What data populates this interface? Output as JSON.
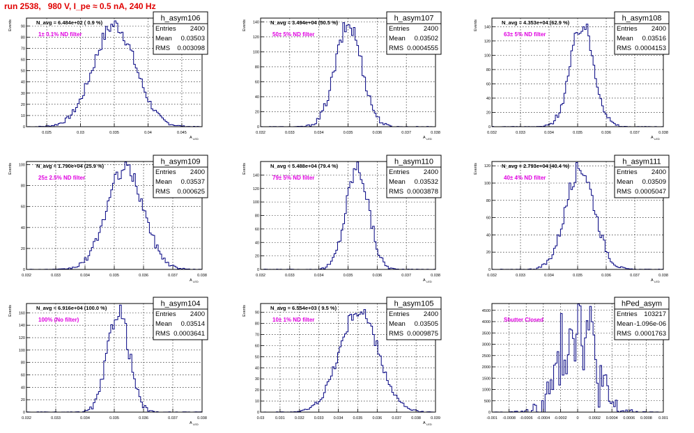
{
  "title": "run 2538,   980 V, I_pe ≈ 0.5 nA, 240 Hz",
  "colors": {
    "hist": "#000080",
    "label": "#e000e0",
    "title": "#e00000"
  },
  "chart_data": [
    {
      "type": "histogram",
      "name": "h_asym106",
      "avg": "N_avg = 6.484e+02 ( 0.9 %)",
      "label": "1± 0.1% ND filter",
      "stats": {
        "entries": "2400",
        "mean": "0.03503",
        "rms": "0.003098"
      },
      "mean": 0.03503,
      "rms": 0.003098,
      "xlim": [
        0.022,
        0.048
      ],
      "ylim": [
        0,
        97
      ],
      "peak": 91,
      "xticks": [
        "0.025",
        "0.03",
        "0.035",
        "0.04",
        "0.045"
      ],
      "yticks": [
        "0",
        "10",
        "20",
        "30",
        "40",
        "50",
        "60",
        "70",
        "80",
        "90"
      ],
      "xlabel": "A",
      "xlabel_sub": "LED",
      "ylabel": "Events",
      "grid": true
    },
    {
      "type": "histogram",
      "name": "h_asym107",
      "avg": "N_avg = 3.494e+04 (50.5 %)",
      "label": "50± 5% ND filter",
      "stats": {
        "entries": "2400",
        "mean": "0.03502",
        "rms": "0.0004555"
      },
      "mean": 0.03502,
      "rms": 0.0004555,
      "xlim": [
        0.032,
        0.038
      ],
      "ylim": [
        0,
        145
      ],
      "peak": 136,
      "xticks": [
        "0.032",
        "0.033",
        "0.034",
        "0.035",
        "0.036",
        "0.037",
        "0.038"
      ],
      "yticks": [
        "0",
        "20",
        "40",
        "60",
        "80",
        "100",
        "120",
        "140"
      ],
      "xlabel": "A",
      "xlabel_sub": "LED",
      "ylabel": "Events",
      "grid": true
    },
    {
      "type": "histogram",
      "name": "h_asym108",
      "avg": "N_avg = 4.353e+04 (62.9 %)",
      "label": "63± 5% ND filter",
      "stats": {
        "entries": "2400",
        "mean": "0.03516",
        "rms": "0.0004153"
      },
      "mean": 0.03516,
      "rms": 0.0004153,
      "xlim": [
        0.032,
        0.038
      ],
      "ylim": [
        0,
        152
      ],
      "peak": 143,
      "xticks": [
        "0.032",
        "0.033",
        "0.034",
        "0.035",
        "0.036",
        "0.037",
        "0.038"
      ],
      "yticks": [
        "0",
        "20",
        "40",
        "60",
        "80",
        "100",
        "120",
        "140"
      ],
      "xlabel": "A",
      "xlabel_sub": "LED",
      "ylabel": "Events",
      "grid": true
    },
    {
      "type": "histogram",
      "name": "h_asym109",
      "avg": "N_avg = 1.790e+04 (25.9 %)",
      "label": "25± 2.5% ND filter",
      "stats": {
        "entries": "2400",
        "mean": "0.03537",
        "rms": "0.000625"
      },
      "mean": 0.03537,
      "rms": 0.000625,
      "xlim": [
        0.032,
        0.038
      ],
      "ylim": [
        0,
        103
      ],
      "peak": 97,
      "xticks": [
        "0.032",
        "0.033",
        "0.034",
        "0.035",
        "0.036",
        "0.037",
        "0.038"
      ],
      "yticks": [
        "0",
        "20",
        "40",
        "60",
        "80",
        "100"
      ],
      "xlabel": "A",
      "xlabel_sub": "LED",
      "ylabel": "Events",
      "grid": true
    },
    {
      "type": "histogram",
      "name": "h_asym110",
      "avg": "N_avg = 5.488e+04 (79.4 %)",
      "label": "79± 5% ND filter",
      "stats": {
        "entries": "2400",
        "mean": "0.03532",
        "rms": "0.0003878"
      },
      "mean": 0.03532,
      "rms": 0.0003878,
      "xlim": [
        0.032,
        0.038
      ],
      "ylim": [
        0,
        160
      ],
      "peak": 152,
      "xticks": [
        "0.032",
        "0.033",
        "0.034",
        "0.035",
        "0.036",
        "0.037",
        "0.038"
      ],
      "yticks": [
        "0",
        "20",
        "40",
        "60",
        "80",
        "100",
        "120",
        "140"
      ],
      "xlabel": "A",
      "xlabel_sub": "LED",
      "ylabel": "Events",
      "grid": true
    },
    {
      "type": "histogram",
      "name": "h_asym111",
      "avg": "N_avg = 2.793e+04 (40.4 %)",
      "label": "40± 4% ND filter",
      "stats": {
        "entries": "2400",
        "mean": "0.03509",
        "rms": "0.0005047"
      },
      "mean": 0.03509,
      "rms": 0.0005047,
      "xlim": [
        0.032,
        0.038
      ],
      "ylim": [
        0,
        125
      ],
      "peak": 118,
      "xticks": [
        "0.032",
        "0.033",
        "0.034",
        "0.035",
        "0.036",
        "0.037",
        "0.038"
      ],
      "yticks": [
        "0",
        "20",
        "40",
        "60",
        "80",
        "100",
        "120"
      ],
      "xlabel": "A",
      "xlabel_sub": "LED",
      "ylabel": "Events",
      "grid": true
    },
    {
      "type": "histogram",
      "name": "h_asym104",
      "avg": "N_avg = 6.916e+04 (100.0 %)",
      "label": "100% (No filter)",
      "stats": {
        "entries": "2400",
        "mean": "0.03514",
        "rms": "0.0003641"
      },
      "mean": 0.03514,
      "rms": 0.0003641,
      "xlim": [
        0.032,
        0.038
      ],
      "ylim": [
        0,
        175
      ],
      "peak": 165,
      "xticks": [
        "0.032",
        "0.033",
        "0.034",
        "0.035",
        "0.036",
        "0.037",
        "0.038"
      ],
      "yticks": [
        "0",
        "20",
        "40",
        "60",
        "80",
        "100",
        "120",
        "140",
        "160"
      ],
      "xlabel": "A",
      "xlabel_sub": "LED",
      "ylabel": "Events",
      "grid": true
    },
    {
      "type": "histogram",
      "name": "h_asym105",
      "avg": "N_avg = 6.554e+03 ( 9.5 %)",
      "label": "10± 1% ND filter",
      "stats": {
        "entries": "2400",
        "mean": "0.03505",
        "rms": "0.0009875"
      },
      "mean": 0.03505,
      "rms": 0.0009875,
      "xlim": [
        0.03,
        0.039
      ],
      "ylim": [
        0,
        98
      ],
      "peak": 92,
      "xticks": [
        "0.03",
        "0.031",
        "0.032",
        "0.033",
        "0.034",
        "0.035",
        "0.036",
        "0.037",
        "0.038",
        "0.039"
      ],
      "yticks": [
        "0",
        "10",
        "20",
        "30",
        "40",
        "50",
        "60",
        "70",
        "80",
        "90"
      ],
      "xlabel": "A",
      "xlabel_sub": "LED",
      "ylabel": "Events",
      "grid": true
    },
    {
      "type": "histogram",
      "name": "hPed_asym",
      "avg": "",
      "label": "Shutter Closed",
      "stats": {
        "entries": "103217",
        "mean": "-1.096e-06",
        "rms": "0.0001763"
      },
      "mean": -1.096e-06,
      "rms": 0.0001763,
      "xlim": [
        -0.001,
        0.001
      ],
      "ylim": [
        0,
        4800
      ],
      "peak": 4560,
      "xticks": [
        "-0.001",
        "-0.0008",
        "-0.0006",
        "-0.0004",
        "-0.0002",
        "0",
        "0.0002",
        "0.0004",
        "0.0006",
        "0.0008",
        "0.001"
      ],
      "yticks": [
        "0",
        "500",
        "1000",
        "1500",
        "2000",
        "2500",
        "3000",
        "3500",
        "4000",
        "4500"
      ],
      "xlabel": "",
      "xlabel_sub": "",
      "ylabel": "",
      "grid": true
    }
  ]
}
